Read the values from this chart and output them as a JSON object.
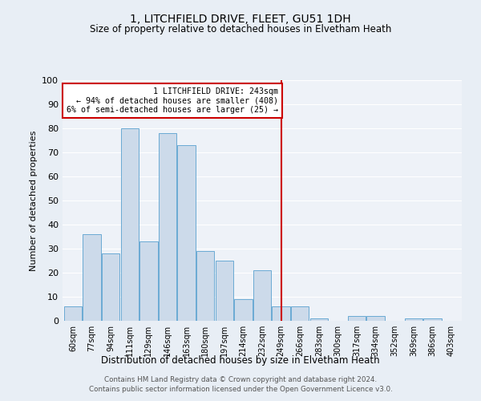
{
  "title": "1, LITCHFIELD DRIVE, FLEET, GU51 1DH",
  "subtitle": "Size of property relative to detached houses in Elvetham Heath",
  "xlabel": "Distribution of detached houses by size in Elvetham Heath",
  "ylabel": "Number of detached properties",
  "categories": [
    "60sqm",
    "77sqm",
    "94sqm",
    "111sqm",
    "129sqm",
    "146sqm",
    "163sqm",
    "180sqm",
    "197sqm",
    "214sqm",
    "232sqm",
    "249sqm",
    "266sqm",
    "283sqm",
    "300sqm",
    "317sqm",
    "334sqm",
    "352sqm",
    "369sqm",
    "386sqm",
    "403sqm"
  ],
  "values": [
    6,
    36,
    28,
    80,
    33,
    78,
    73,
    29,
    25,
    9,
    21,
    6,
    6,
    1,
    0,
    2,
    2,
    0,
    1,
    1,
    0
  ],
  "bar_color": "#ccdaea",
  "bar_edge_color": "#6aaad4",
  "ref_line_label": "1 LITCHFIELD DRIVE: 243sqm",
  "annotation_line1": "← 94% of detached houses are smaller (408)",
  "annotation_line2": "6% of semi-detached houses are larger (25) →",
  "annotation_box_color": "#ffffff",
  "annotation_box_edge_color": "#cc0000",
  "ref_line_color": "#cc0000",
  "ylim": [
    0,
    100
  ],
  "yticks": [
    0,
    10,
    20,
    30,
    40,
    50,
    60,
    70,
    80,
    90,
    100
  ],
  "footer_line1": "Contains HM Land Registry data © Crown copyright and database right 2024.",
  "footer_line2": "Contains public sector information licensed under the Open Government Licence v3.0.",
  "bg_color": "#e8eef5",
  "plot_bg_color": "#eef2f8",
  "grid_color": "#ffffff",
  "title_fontsize": 10,
  "subtitle_fontsize": 8.5
}
